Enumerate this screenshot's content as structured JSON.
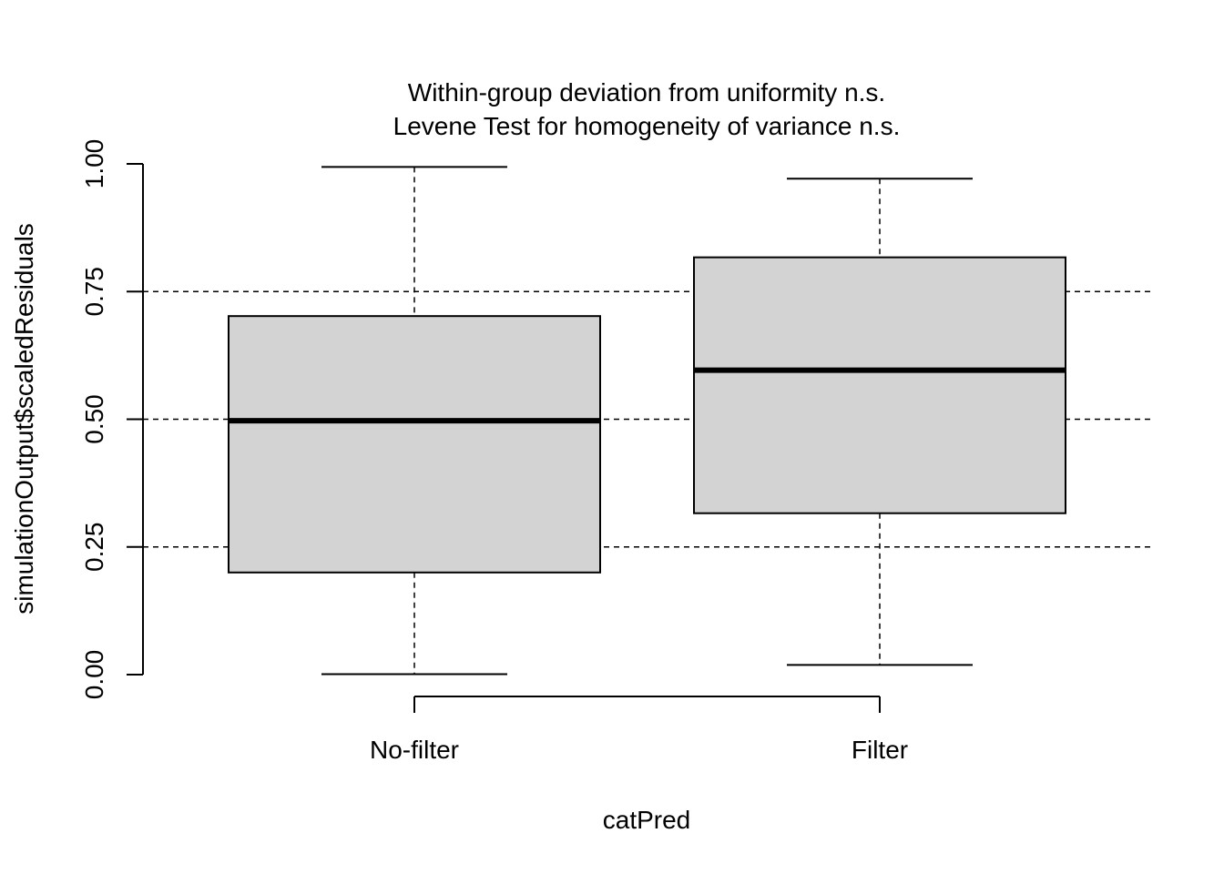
{
  "chart_data": {
    "type": "boxplot",
    "title": "Within-group deviation from uniformity n.s.",
    "subtitle": "Levene Test for homogeneity of variance n.s.",
    "xlabel": "catPred",
    "ylabel": "simulationOutput$scaledResiduals",
    "ylim": [
      0,
      1
    ],
    "yticks": [
      "0.00",
      "0.25",
      "0.50",
      "0.75",
      "1.00"
    ],
    "reference_lines": [
      0.25,
      0.5,
      0.75
    ],
    "grid": false,
    "box_fill": "#d3d3d3",
    "groups": [
      {
        "label": "No-filter",
        "min": 0.001,
        "q1": 0.2,
        "median": 0.497,
        "q3": 0.702,
        "max": 0.994
      },
      {
        "label": "Filter",
        "min": 0.019,
        "q1": 0.316,
        "median": 0.596,
        "q3": 0.817,
        "max": 0.971
      }
    ]
  }
}
